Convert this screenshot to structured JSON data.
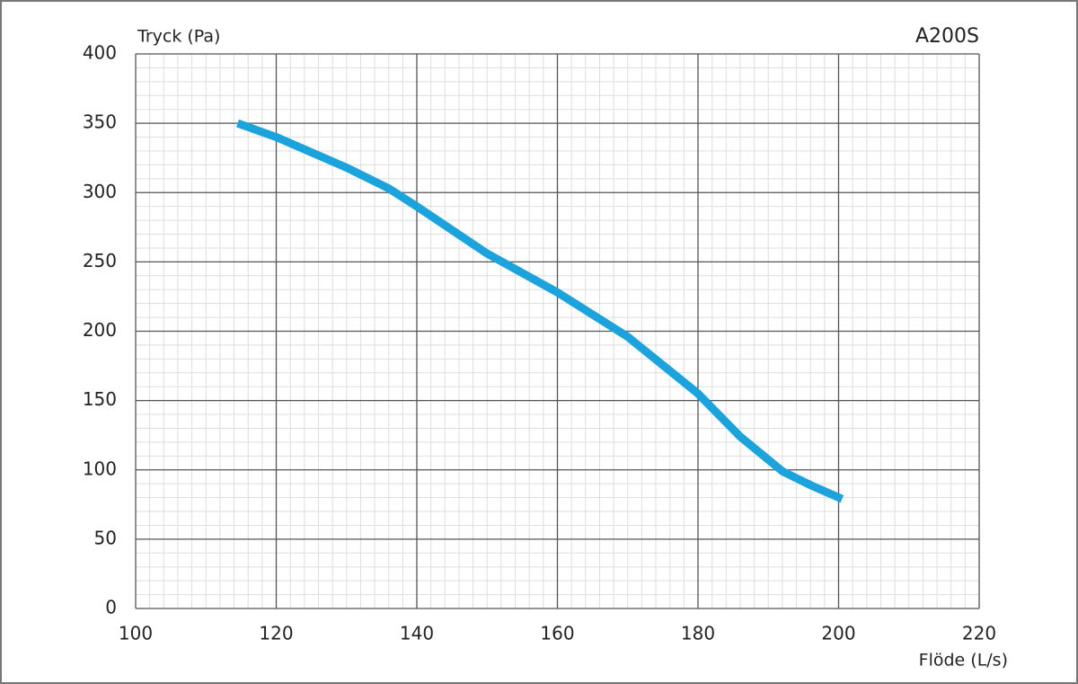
{
  "chart_data": {
    "type": "line",
    "title": "A200S",
    "y_label": "Tryck (Pa)",
    "x_label": "Flöde (L/s)",
    "x": [
      114.5,
      120,
      130,
      136,
      140,
      150,
      160,
      170,
      180,
      186,
      192,
      196,
      200.5
    ],
    "series": [
      {
        "name": "A200S",
        "color": "#1aa3dd",
        "values": [
          350,
          340,
          318,
          303,
          290,
          256,
          228,
          196,
          155,
          124,
          99,
          89,
          79
        ]
      }
    ],
    "xlim": [
      100,
      220
    ],
    "xticks": [
      100,
      120,
      140,
      160,
      180,
      200,
      220
    ],
    "ylim": [
      0,
      400
    ],
    "yticks": [
      0,
      50,
      100,
      150,
      200,
      250,
      300,
      350,
      400
    ],
    "grid": true,
    "x_minor_step": 2,
    "y_minor_step": 10
  }
}
